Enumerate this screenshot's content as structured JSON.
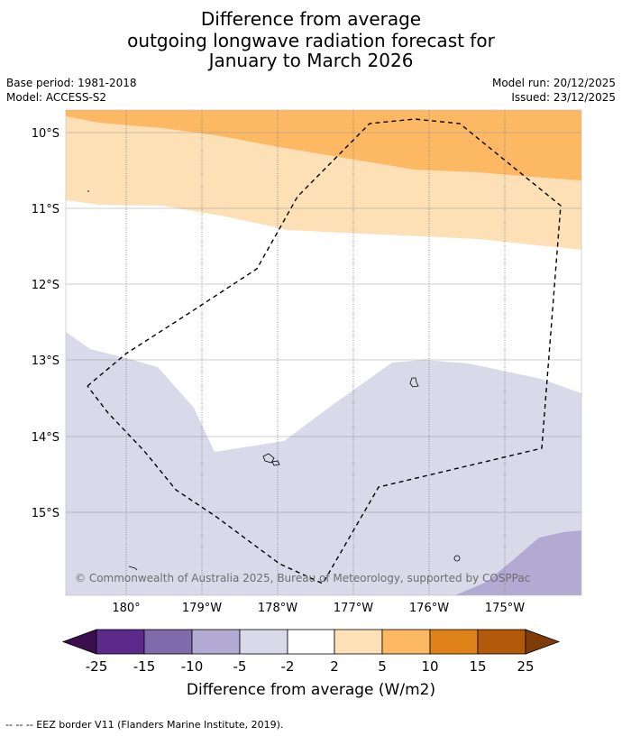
{
  "title": {
    "line1": "Difference from average",
    "line2": "outgoing longwave radiation forecast for",
    "line3": "January to March 2026"
  },
  "meta": {
    "base_period": "Base period: 1981-2018",
    "model": "Model: ACCESS-S2",
    "model_run": "Model run: 20/12/2025",
    "issued": "Issued: 23/12/2025"
  },
  "map": {
    "lat_labels": [
      "10°S",
      "11°S",
      "12°S",
      "13°S",
      "14°S",
      "15°S"
    ],
    "lon_labels": [
      "180°",
      "179°W",
      "178°W",
      "177°W",
      "176°W",
      "175°W"
    ],
    "copyright": "© Commonwealth of Australia 2025, Bureau of Meteorology, supported by COSPPac"
  },
  "colorbar": {
    "tick_labels": [
      "-25",
      "-15",
      "-10",
      "-5",
      "-2",
      "2",
      "5",
      "10",
      "15",
      "25"
    ],
    "label": "Difference from average (W/m2)",
    "colors": {
      "below_min": "#3b0f4f",
      "b1": "#5c2a8a",
      "b2": "#7f6aab",
      "b3": "#b2aad2",
      "b4": "#d9d9ea",
      "b5": "#ffffff",
      "b6": "#fde0b6",
      "b7": "#fdb863",
      "b8": "#e0821a",
      "b9": "#b3590a",
      "above_max": "#7f3b08"
    }
  },
  "legend": {
    "eez_text": "--  --  -- EEZ border V11 (Flanders Marine Institute, 2019)."
  }
}
